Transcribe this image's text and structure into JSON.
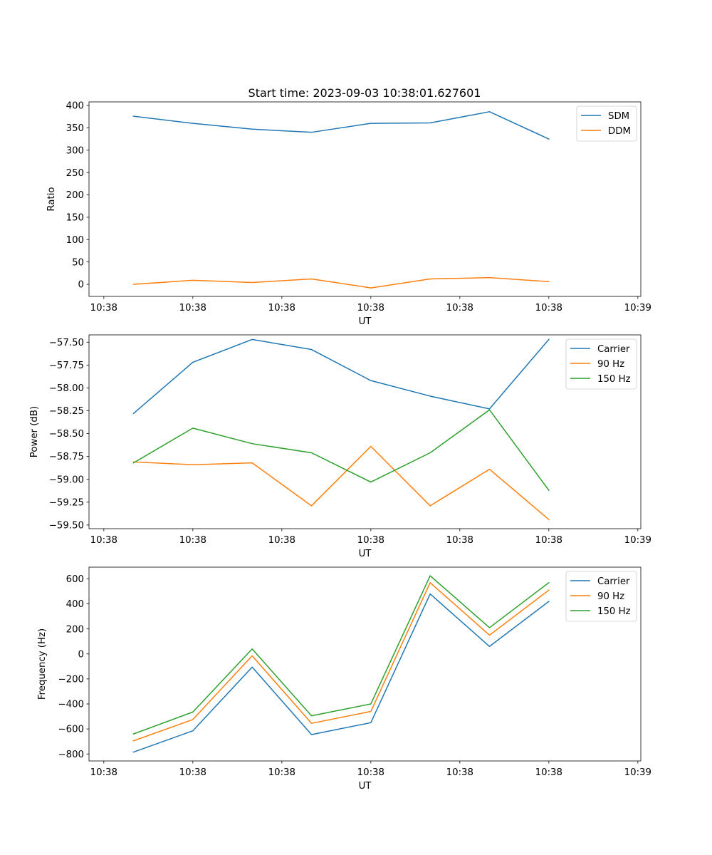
{
  "figure_title": "Start time: 2023-09-03 10:38:01.627601",
  "colors": {
    "blue": "#1f77b4",
    "orange": "#ff7f0e",
    "green": "#2ca02c"
  },
  "chart_data": [
    {
      "type": "line",
      "title": "Start time: 2023-09-03 10:38:01.627601",
      "xlabel": "UT",
      "ylabel": "Ratio",
      "xlim": [
        -0.75,
        8.55
      ],
      "ylim": [
        -27,
        408
      ],
      "xticks": [
        -0.5,
        1,
        2.5,
        4,
        5.5,
        7,
        8.5
      ],
      "xtick_labels": [
        "10:38",
        "10:38",
        "10:38",
        "10:38",
        "10:38",
        "10:38",
        "10:39"
      ],
      "yticks": [
        0,
        50,
        100,
        150,
        200,
        250,
        300,
        350,
        400
      ],
      "ytick_labels": [
        "0",
        "50",
        "100",
        "150",
        "200",
        "250",
        "300",
        "350",
        "400"
      ],
      "x": [
        0,
        1,
        2,
        3,
        4,
        5,
        6,
        7
      ],
      "series": [
        {
          "name": "SDM",
          "color": "#1f77b4",
          "values": [
            376,
            360,
            347,
            340,
            360,
            361,
            386,
            325
          ]
        },
        {
          "name": "DDM",
          "color": "#ff7f0e",
          "values": [
            0,
            9,
            4,
            12,
            -8,
            12,
            15,
            6
          ]
        }
      ],
      "legend": "top-right",
      "grid": false
    },
    {
      "type": "line",
      "title": "",
      "xlabel": "UT",
      "ylabel": "Power (dB)",
      "xlim": [
        -0.75,
        8.55
      ],
      "ylim": [
        -59.54,
        -57.42
      ],
      "xticks": [
        -0.5,
        1,
        2.5,
        4,
        5.5,
        7,
        8.5
      ],
      "xtick_labels": [
        "10:38",
        "10:38",
        "10:38",
        "10:38",
        "10:38",
        "10:38",
        "10:39"
      ],
      "yticks": [
        -59.5,
        -59.25,
        -59.0,
        -58.75,
        -58.5,
        -58.25,
        -58.0,
        -57.75,
        -57.5
      ],
      "ytick_labels": [
        "−59.50",
        "−59.25",
        "−59.00",
        "−58.75",
        "−58.50",
        "−58.25",
        "−58.00",
        "−57.75",
        "−57.50"
      ],
      "x": [
        0,
        1,
        2,
        3,
        4,
        5,
        6,
        7
      ],
      "series": [
        {
          "name": "Carrier",
          "color": "#1f77b4",
          "values": [
            -58.28,
            -57.72,
            -57.47,
            -57.58,
            -57.92,
            -58.09,
            -58.23,
            -57.47
          ]
        },
        {
          "name": "90 Hz",
          "color": "#ff7f0e",
          "values": [
            -58.81,
            -58.84,
            -58.82,
            -59.29,
            -58.64,
            -59.29,
            -58.89,
            -59.44
          ]
        },
        {
          "name": "150 Hz",
          "color": "#2ca02c",
          "values": [
            -58.82,
            -58.44,
            -58.61,
            -58.71,
            -59.03,
            -58.71,
            -58.24,
            -59.12
          ]
        }
      ],
      "legend": "top-right",
      "grid": false
    },
    {
      "type": "line",
      "title": "",
      "xlabel": "UT",
      "ylabel": "Frequency (Hz)",
      "xlim": [
        -0.75,
        8.55
      ],
      "ylim": [
        -856,
        694
      ],
      "xticks": [
        -0.5,
        1,
        2.5,
        4,
        5.5,
        7,
        8.5
      ],
      "xtick_labels": [
        "10:38",
        "10:38",
        "10:38",
        "10:38",
        "10:38",
        "10:38",
        "10:39"
      ],
      "yticks": [
        -800,
        -600,
        -400,
        -200,
        0,
        200,
        400,
        600
      ],
      "ytick_labels": [
        "−800",
        "−600",
        "−400",
        "−200",
        "0",
        "200",
        "400",
        "600"
      ],
      "x": [
        0,
        1,
        2,
        3,
        4,
        5,
        6,
        7
      ],
      "series": [
        {
          "name": "Carrier",
          "color": "#1f77b4",
          "values": [
            -785,
            -615,
            -105,
            -645,
            -550,
            480,
            60,
            420
          ]
        },
        {
          "name": "90 Hz",
          "color": "#ff7f0e",
          "values": [
            -695,
            -525,
            -15,
            -555,
            -460,
            570,
            150,
            510
          ]
        },
        {
          "name": "150 Hz",
          "color": "#2ca02c",
          "values": [
            -640,
            -465,
            40,
            -495,
            -400,
            625,
            210,
            570
          ]
        }
      ],
      "legend": "top-right",
      "grid": false
    }
  ]
}
